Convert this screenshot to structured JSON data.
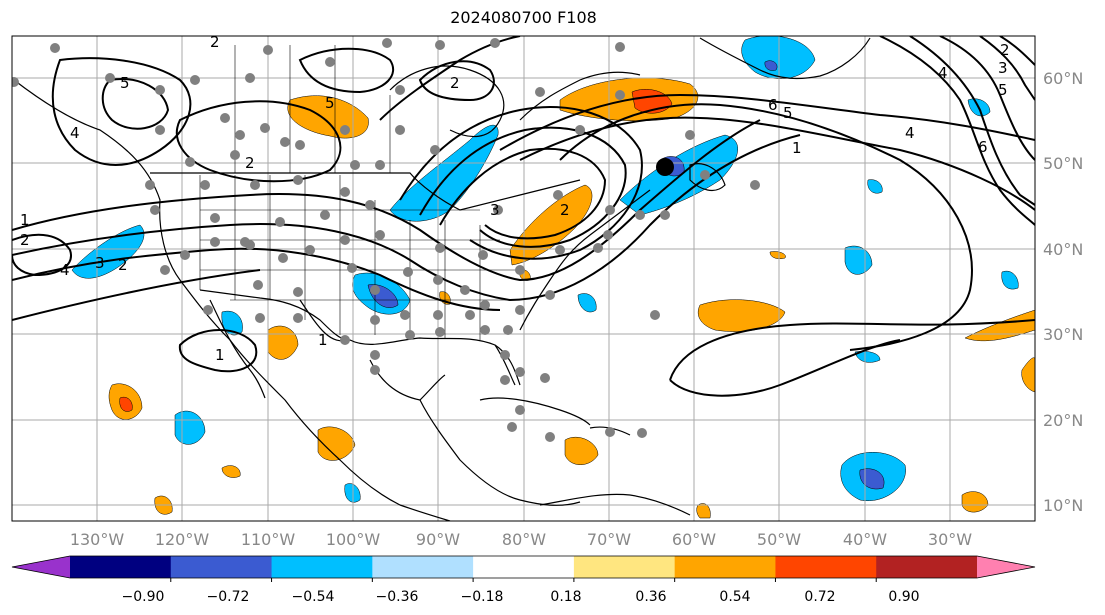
{
  "title": "2024080700 F108",
  "lat_labels": [
    "60°N",
    "50°N",
    "40°N",
    "30°N",
    "20°N",
    "10°N"
  ],
  "lon_labels": [
    "130°W",
    "120°W",
    "110°W",
    "100°W",
    "90°W",
    "80°W",
    "70°W",
    "60°W",
    "50°W",
    "40°W",
    "30°W"
  ],
  "contour_labels": [
    "2",
    "5",
    "4",
    "2",
    "2",
    "5",
    "1",
    "2",
    "4",
    "3",
    "2",
    "1",
    "1",
    "6",
    "5",
    "4",
    "1",
    "6",
    "3",
    "5",
    "2",
    "4",
    "3",
    "2"
  ],
  "colorbar": {
    "colors": [
      "#9932cc",
      "#000080",
      "#3b5bd1",
      "#00bfff",
      "#b0e0ff",
      "#ffffff",
      "#ffe680",
      "#ffa500",
      "#ff4500",
      "#b22222",
      "#ff80b0"
    ],
    "ticks": [
      "−0.90",
      "−0.72",
      "−0.54",
      "−0.36",
      "−0.18",
      "0.18",
      "0.36",
      "0.54",
      "0.72",
      "0.90"
    ]
  },
  "colors": {
    "grid": "#aaaaaa",
    "station": "#808080",
    "marker": "#000000",
    "label_gray": "#888888"
  }
}
